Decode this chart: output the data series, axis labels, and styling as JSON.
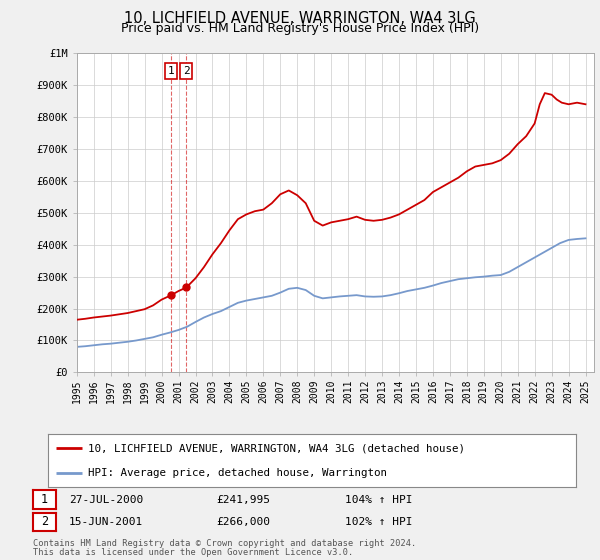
{
  "title": "10, LICHFIELD AVENUE, WARRINGTON, WA4 3LG",
  "subtitle": "Price paid vs. HM Land Registry's House Price Index (HPI)",
  "legend_line1": "10, LICHFIELD AVENUE, WARRINGTON, WA4 3LG (detached house)",
  "legend_line2": "HPI: Average price, detached house, Warrington",
  "red_color": "#cc0000",
  "blue_color": "#7799cc",
  "annotation1_label": "1",
  "annotation1_date": "27-JUL-2000",
  "annotation1_price": "£241,995",
  "annotation1_hpi": "104% ↑ HPI",
  "annotation2_label": "2",
  "annotation2_date": "15-JUN-2001",
  "annotation2_price": "£266,000",
  "annotation2_hpi": "102% ↑ HPI",
  "footnote1": "Contains HM Land Registry data © Crown copyright and database right 2024.",
  "footnote2": "This data is licensed under the Open Government Licence v3.0.",
  "xmin": 1995.0,
  "xmax": 2025.5,
  "ymin": 0,
  "ymax": 1000000,
  "yticks": [
    0,
    100000,
    200000,
    300000,
    400000,
    500000,
    600000,
    700000,
    800000,
    900000,
    1000000
  ],
  "ytick_labels": [
    "£0",
    "£100K",
    "£200K",
    "£300K",
    "£400K",
    "£500K",
    "£600K",
    "£700K",
    "£800K",
    "£900K",
    "£1M"
  ],
  "sale1_x": 2000.57,
  "sale1_y": 241995,
  "sale2_x": 2001.46,
  "sale2_y": 266000,
  "vline1_x": 2000.57,
  "vline2_x": 2001.46,
  "background_color": "#f0f0f0",
  "plot_bg_color": "#ffffff",
  "grid_color": "#cccccc",
  "hpi_x": [
    1995.0,
    1995.5,
    1996.0,
    1996.5,
    1997.0,
    1997.5,
    1998.0,
    1998.5,
    1999.0,
    1999.5,
    2000.0,
    2000.5,
    2001.0,
    2001.5,
    2002.0,
    2002.5,
    2003.0,
    2003.5,
    2004.0,
    2004.5,
    2005.0,
    2005.5,
    2006.0,
    2006.5,
    2007.0,
    2007.5,
    2008.0,
    2008.5,
    2009.0,
    2009.5,
    2010.0,
    2010.5,
    2011.0,
    2011.5,
    2012.0,
    2012.5,
    2013.0,
    2013.5,
    2014.0,
    2014.5,
    2015.0,
    2015.5,
    2016.0,
    2016.5,
    2017.0,
    2017.5,
    2018.0,
    2018.5,
    2019.0,
    2019.5,
    2020.0,
    2020.5,
    2021.0,
    2021.5,
    2022.0,
    2022.5,
    2023.0,
    2023.5,
    2024.0,
    2024.5,
    2025.0
  ],
  "hpi_y": [
    80000,
    82000,
    85000,
    88000,
    90000,
    93000,
    96000,
    100000,
    105000,
    110000,
    118000,
    125000,
    133000,
    143000,
    158000,
    172000,
    183000,
    192000,
    205000,
    218000,
    225000,
    230000,
    235000,
    240000,
    250000,
    262000,
    265000,
    258000,
    240000,
    232000,
    235000,
    238000,
    240000,
    242000,
    238000,
    237000,
    238000,
    242000,
    248000,
    255000,
    260000,
    265000,
    272000,
    280000,
    286000,
    292000,
    295000,
    298000,
    300000,
    303000,
    305000,
    315000,
    330000,
    345000,
    360000,
    375000,
    390000,
    405000,
    415000,
    418000,
    420000
  ],
  "red_x": [
    1995.0,
    1995.5,
    1996.0,
    1996.5,
    1997.0,
    1997.5,
    1998.0,
    1998.5,
    1999.0,
    1999.5,
    2000.0,
    2000.57,
    2001.0,
    2001.46,
    2002.0,
    2002.5,
    2003.0,
    2003.5,
    2004.0,
    2004.5,
    2005.0,
    2005.5,
    2006.0,
    2006.5,
    2007.0,
    2007.5,
    2008.0,
    2008.5,
    2009.0,
    2009.5,
    2010.0,
    2010.5,
    2011.0,
    2011.5,
    2012.0,
    2012.5,
    2013.0,
    2013.5,
    2014.0,
    2014.5,
    2015.0,
    2015.5,
    2016.0,
    2016.5,
    2017.0,
    2017.5,
    2018.0,
    2018.5,
    2019.0,
    2019.5,
    2020.0,
    2020.5,
    2021.0,
    2021.5,
    2022.0,
    2022.3,
    2022.6,
    2023.0,
    2023.3,
    2023.6,
    2024.0,
    2024.5,
    2025.0
  ],
  "red_y": [
    165000,
    168000,
    172000,
    175000,
    178000,
    182000,
    186000,
    192000,
    198000,
    210000,
    228000,
    241995,
    255000,
    266000,
    295000,
    330000,
    370000,
    405000,
    445000,
    480000,
    495000,
    505000,
    510000,
    530000,
    558000,
    570000,
    555000,
    530000,
    475000,
    460000,
    470000,
    475000,
    480000,
    488000,
    478000,
    475000,
    478000,
    485000,
    495000,
    510000,
    525000,
    540000,
    565000,
    580000,
    595000,
    610000,
    630000,
    645000,
    650000,
    655000,
    665000,
    685000,
    715000,
    740000,
    780000,
    840000,
    875000,
    870000,
    855000,
    845000,
    840000,
    845000,
    840000
  ]
}
